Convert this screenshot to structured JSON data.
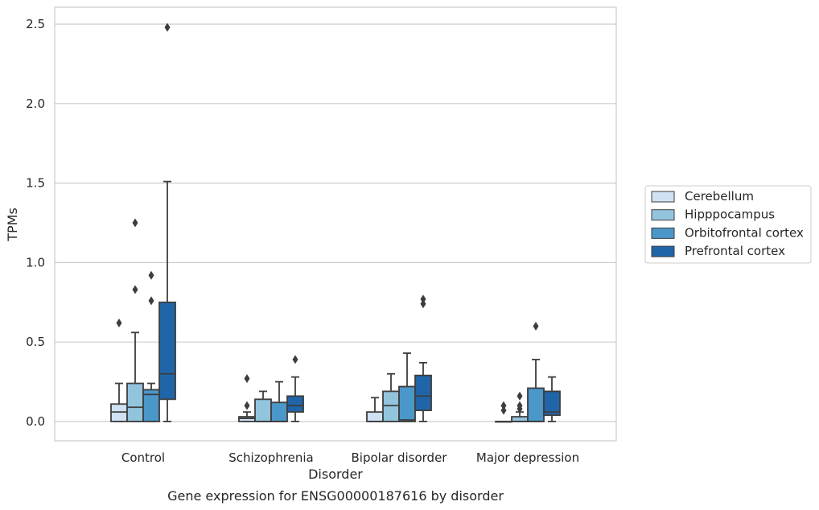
{
  "chart_data": {
    "type": "box",
    "caption": "Gene expression for ENSG00000187616 by disorder",
    "xlabel": "Disorder",
    "ylabel": "TPMs",
    "ylim": [
      -0.12,
      2.62
    ],
    "yticks": [
      "0.0",
      "0.5",
      "1.0",
      "1.5",
      "2.0",
      "2.5"
    ],
    "ytick_values": [
      0.0,
      0.5,
      1.0,
      1.5,
      2.0,
      2.5
    ],
    "grid": "horizontal",
    "legend_position": "right",
    "categories": [
      "Control",
      "Schizophrenia",
      "Bipolar disorder",
      "Major depression"
    ],
    "series": [
      {
        "name": "Cerebellum",
        "color": "#cfe1f2",
        "boxes": [
          {
            "whisker_low": 0.0,
            "q1": 0.0,
            "median": 0.06,
            "q3": 0.11,
            "whisker_high": 0.24,
            "outliers": [
              0.62
            ]
          },
          {
            "whisker_low": 0.0,
            "q1": 0.0,
            "median": 0.02,
            "q3": 0.03,
            "whisker_high": 0.06,
            "outliers": [
              0.27,
              0.1
            ]
          },
          {
            "whisker_low": 0.0,
            "q1": 0.0,
            "median": 0.0,
            "q3": 0.06,
            "whisker_high": 0.15,
            "outliers": []
          },
          {
            "whisker_low": 0.0,
            "q1": 0.0,
            "median": 0.0,
            "q3": 0.0,
            "whisker_high": 0.0,
            "outliers": [
              0.1,
              0.07
            ]
          }
        ]
      },
      {
        "name": "Hipppocampus",
        "color": "#93c4de",
        "boxes": [
          {
            "whisker_low": 0.0,
            "q1": 0.0,
            "median": 0.09,
            "q3": 0.24,
            "whisker_high": 0.56,
            "outliers": [
              1.25,
              0.83
            ]
          },
          {
            "whisker_low": 0.0,
            "q1": 0.0,
            "median": 0.0,
            "q3": 0.14,
            "whisker_high": 0.19,
            "outliers": []
          },
          {
            "whisker_low": 0.0,
            "q1": 0.0,
            "median": 0.1,
            "q3": 0.19,
            "whisker_high": 0.3,
            "outliers": []
          },
          {
            "whisker_low": 0.0,
            "q1": 0.0,
            "median": 0.0,
            "q3": 0.03,
            "whisker_high": 0.06,
            "outliers": [
              0.16,
              0.1,
              0.08
            ]
          }
        ]
      },
      {
        "name": "Orbitofrontal cortex",
        "color": "#4b97c9",
        "boxes": [
          {
            "whisker_low": 0.0,
            "q1": 0.0,
            "median": 0.17,
            "q3": 0.2,
            "whisker_high": 0.24,
            "outliers": [
              0.92,
              0.76
            ]
          },
          {
            "whisker_low": 0.0,
            "q1": 0.0,
            "median": 0.0,
            "q3": 0.12,
            "whisker_high": 0.25,
            "outliers": []
          },
          {
            "whisker_low": 0.0,
            "q1": 0.0,
            "median": 0.01,
            "q3": 0.22,
            "whisker_high": 0.43,
            "outliers": []
          },
          {
            "whisker_low": 0.0,
            "q1": 0.0,
            "median": 0.0,
            "q3": 0.21,
            "whisker_high": 0.39,
            "outliers": [
              0.6
            ]
          }
        ]
      },
      {
        "name": "Prefrontal cortex",
        "color": "#2165a9",
        "boxes": [
          {
            "whisker_low": 0.0,
            "q1": 0.14,
            "median": 0.3,
            "q3": 0.75,
            "whisker_high": 1.51,
            "outliers": [
              2.48
            ]
          },
          {
            "whisker_low": 0.0,
            "q1": 0.06,
            "median": 0.1,
            "q3": 0.16,
            "whisker_high": 0.28,
            "outliers": [
              0.39
            ]
          },
          {
            "whisker_low": 0.0,
            "q1": 0.07,
            "median": 0.16,
            "q3": 0.29,
            "whisker_high": 0.37,
            "outliers": [
              0.77,
              0.74
            ]
          },
          {
            "whisker_low": 0.0,
            "q1": 0.04,
            "median": 0.06,
            "q3": 0.19,
            "whisker_high": 0.28,
            "outliers": []
          }
        ]
      }
    ]
  }
}
